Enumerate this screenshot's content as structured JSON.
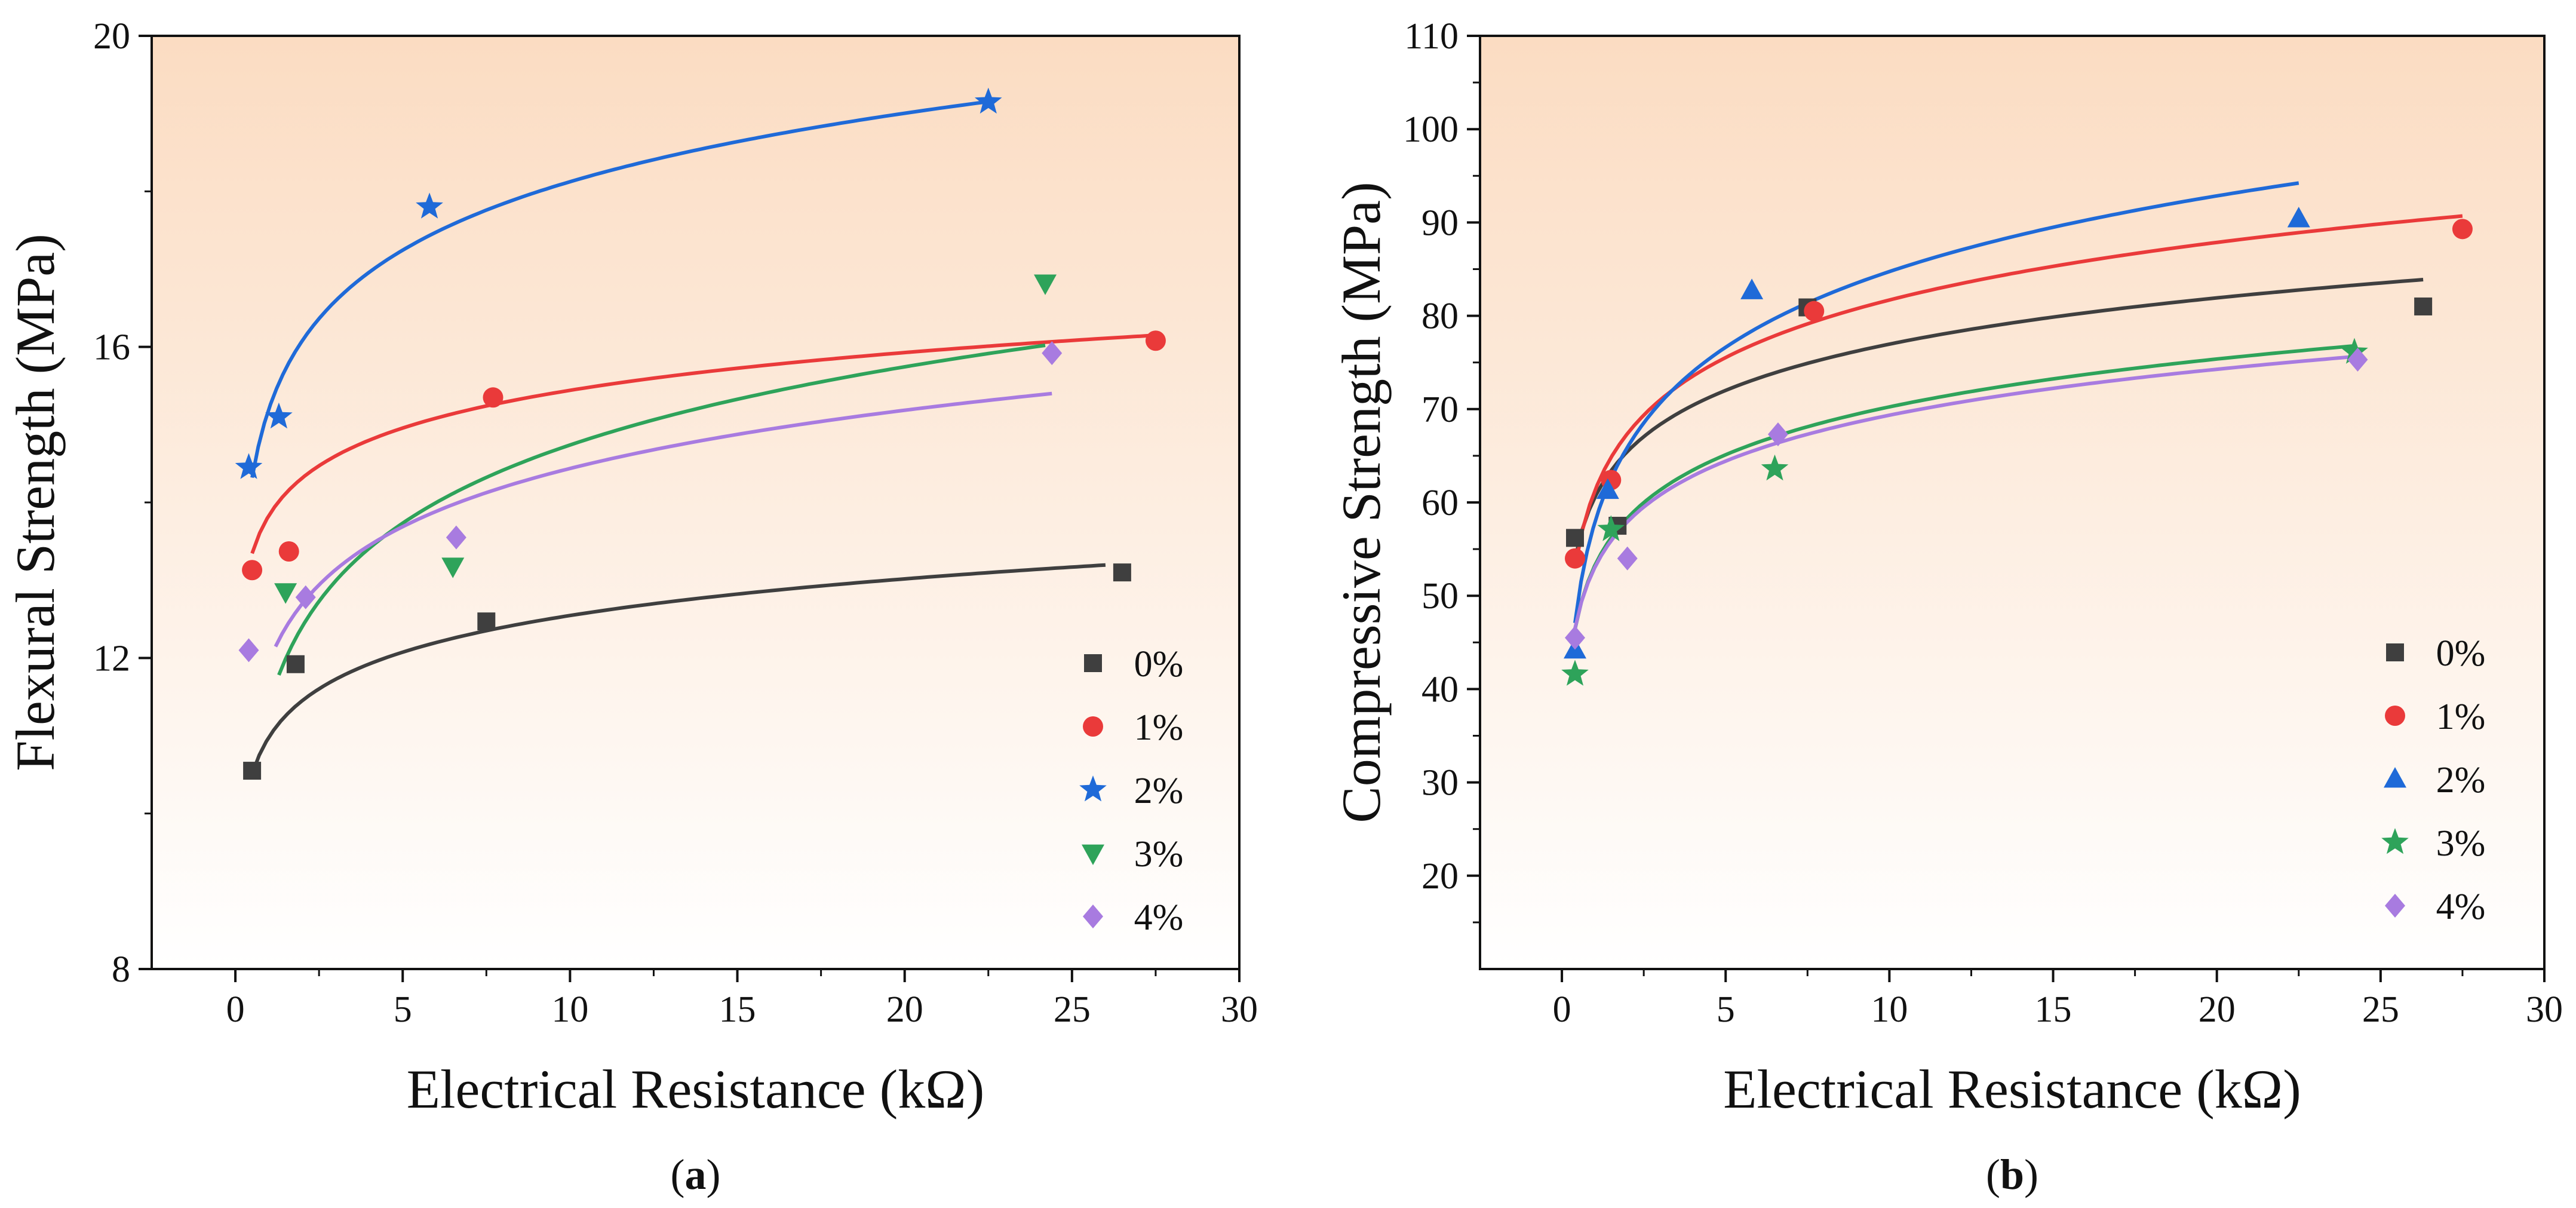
{
  "colors": {
    "0%": "#3f3f3f",
    "1%": "#ea3a3a",
    "2%": "#1f6ad8",
    "3%": "#2ea35a",
    "4%": "#a87be0",
    "bg_top": "#fbdcc2",
    "bg_bottom": "#ffffff"
  },
  "chart_data": [
    {
      "type": "scatter",
      "id": "a",
      "caption": "(a)",
      "caption_letter": "a",
      "xlabel": "Electrical Resistance (kΩ)",
      "ylabel": "Flexural Strength (MPa)",
      "xlim": [
        -2.5,
        30
      ],
      "ylim": [
        8,
        20
      ],
      "xticks": [
        "0",
        "5",
        "10",
        "15",
        "20",
        "25",
        "30"
      ],
      "yticks": [
        "8",
        "12",
        "16",
        "20"
      ],
      "legend_position": "bottom-right",
      "series": [
        {
          "name": "0%",
          "marker": "square",
          "x": [
            0.5,
            1.8,
            7.5,
            26.5
          ],
          "y": [
            10.55,
            11.92,
            12.47,
            13.1
          ],
          "fit": {
            "type": "log",
            "a": 10.98,
            "b": 0.68,
            "x_range": [
              0.5,
              26
            ]
          }
        },
        {
          "name": "1%",
          "marker": "circle",
          "x": [
            0.5,
            1.6,
            7.7,
            27.5
          ],
          "y": [
            13.13,
            13.37,
            15.35,
            16.08
          ],
          "fit": {
            "type": "log",
            "a": 13.83,
            "b": 0.7,
            "x_range": [
              0.5,
              27.5
            ]
          }
        },
        {
          "name": "2%",
          "marker": "star",
          "x": [
            0.4,
            1.3,
            5.8,
            22.5
          ],
          "y": [
            14.45,
            15.1,
            17.8,
            19.15
          ],
          "fit": {
            "type": "log",
            "a": 15.2,
            "b": 1.27,
            "x_range": [
              0.5,
              22.5
            ]
          }
        },
        {
          "name": "3%",
          "marker": "triangle-down",
          "x": [
            1.5,
            6.5,
            24.2
          ],
          "y": [
            12.85,
            13.18,
            16.82
          ],
          "fit": {
            "type": "log",
            "a": 11.4,
            "b": 1.45,
            "x_range": [
              1.3,
              24.2
            ]
          }
        },
        {
          "name": "4%",
          "marker": "diamond",
          "x": [
            0.4,
            2.1,
            6.6,
            24.4
          ],
          "y": [
            12.1,
            12.78,
            13.55,
            15.92
          ],
          "fit": {
            "type": "log",
            "a": 11.95,
            "b": 1.08,
            "x_range": [
              1.2,
              24.4
            ]
          }
        }
      ]
    },
    {
      "type": "scatter",
      "id": "b",
      "caption": "(b)",
      "caption_letter": "b",
      "xlabel": "Electrical Resistance (kΩ)",
      "ylabel": "Compressive Strength (MPa)",
      "xlim": [
        -2.5,
        30
      ],
      "ylim": [
        10,
        110
      ],
      "xticks": [
        "0",
        "5",
        "10",
        "15",
        "20",
        "25",
        "30"
      ],
      "yticks": [
        "20",
        "30",
        "40",
        "50",
        "60",
        "70",
        "80",
        "90",
        "100",
        "110"
      ],
      "legend_position": "bottom-right",
      "series": [
        {
          "name": "0%",
          "marker": "square",
          "x": [
            0.4,
            1.7,
            7.5,
            26.3
          ],
          "y": [
            56.2,
            57.5,
            80.9,
            81.0
          ],
          "fit": {
            "type": "log",
            "a": 60.5,
            "b": 7.15,
            "x_range": [
              0.4,
              26.3
            ]
          }
        },
        {
          "name": "1%",
          "marker": "circle",
          "x": [
            0.4,
            1.5,
            7.7,
            27.5
          ],
          "y": [
            54.0,
            62.4,
            80.5,
            89.3
          ],
          "fit": {
            "type": "log",
            "a": 61.2,
            "b": 8.9,
            "x_range": [
              0.4,
              27.5
            ]
          }
        },
        {
          "name": "2%",
          "marker": "triangle-up",
          "x": [
            0.4,
            1.4,
            5.8,
            22.5
          ],
          "y": [
            44.2,
            61.3,
            82.7,
            90.4
          ],
          "fit": {
            "type": "log",
            "a": 57.8,
            "b": 11.7,
            "x_range": [
              0.4,
              22.5
            ]
          }
        },
        {
          "name": "3%",
          "marker": "star",
          "x": [
            0.4,
            1.5,
            6.5,
            24.2
          ],
          "y": [
            41.6,
            57.1,
            63.6,
            76.1
          ],
          "fit": {
            "type": "log",
            "a": 53.2,
            "b": 7.4,
            "x_range": [
              0.4,
              24.2
            ]
          }
        },
        {
          "name": "4%",
          "marker": "diamond",
          "x": [
            0.4,
            2.0,
            6.6,
            24.3
          ],
          "y": [
            45.5,
            54.0,
            67.3,
            75.3
          ],
          "fit": {
            "type": "log",
            "a": 53.0,
            "b": 7.1,
            "x_range": [
              0.4,
              24.3
            ]
          }
        }
      ]
    }
  ]
}
